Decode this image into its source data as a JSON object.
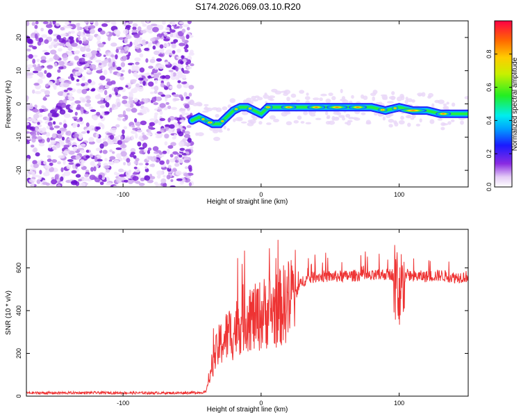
{
  "title": "S174.2026.069.03.10.R20",
  "chart_data": [
    {
      "type": "heatmap",
      "title": "S174.2026.069.03.10.R20",
      "xlabel": "Height of straight line (km)",
      "ylabel": "Frequency (Hz)",
      "xlim": [
        -170,
        150
      ],
      "ylim": [
        -25,
        25
      ],
      "xticks": [
        -100,
        0,
        100
      ],
      "yticks": [
        -20,
        -10,
        0,
        10,
        20
      ],
      "noise_region_x": [
        -170,
        -50
      ],
      "signal_track": {
        "x": [
          -50,
          -45,
          -40,
          -35,
          -30,
          -25,
          -20,
          -15,
          -10,
          -5,
          0,
          5,
          10,
          20,
          40,
          60,
          80,
          90,
          100,
          110,
          120,
          130,
          140,
          150
        ],
        "y": [
          -5,
          -4,
          -5,
          -6,
          -6,
          -4,
          -2,
          -1,
          -1,
          -2,
          -3,
          -1,
          -1,
          -1,
          -1,
          -1,
          -1,
          -2,
          -1,
          -2,
          -2,
          -3,
          -3,
          -3
        ]
      },
      "colorbar": {
        "label": "Normalized spectral amplitude",
        "range": [
          0.0,
          1.0
        ],
        "ticks": [
          "0.0",
          "0.2",
          "0.4",
          "0.6",
          "0.8"
        ]
      }
    },
    {
      "type": "line",
      "xlabel": "Height of straight line (km)",
      "ylabel": "SNR (10 * v/v)",
      "xlim": [
        -170,
        150
      ],
      "ylim": [
        0,
        780
      ],
      "xticks": [
        -100,
        0,
        100
      ],
      "yticks": [
        0,
        200,
        400,
        600
      ],
      "series": [
        {
          "name": "SNR",
          "color": "#ee3333",
          "x": [
            -170,
            -150,
            -120,
            -90,
            -60,
            -40,
            -35,
            -30,
            -25,
            -20,
            -15,
            -10,
            -5,
            0,
            5,
            10,
            15,
            20,
            25,
            30,
            40,
            50,
            60,
            70,
            80,
            90,
            95,
            100,
            105,
            110,
            120,
            130,
            140,
            150
          ],
          "y": [
            15,
            15,
            16,
            15,
            15,
            18,
            160,
            240,
            280,
            300,
            350,
            380,
            360,
            380,
            400,
            400,
            420,
            450,
            480,
            540,
            560,
            560,
            560,
            565,
            560,
            570,
            570,
            470,
            570,
            560,
            560,
            565,
            555,
            560
          ]
        }
      ]
    }
  ]
}
